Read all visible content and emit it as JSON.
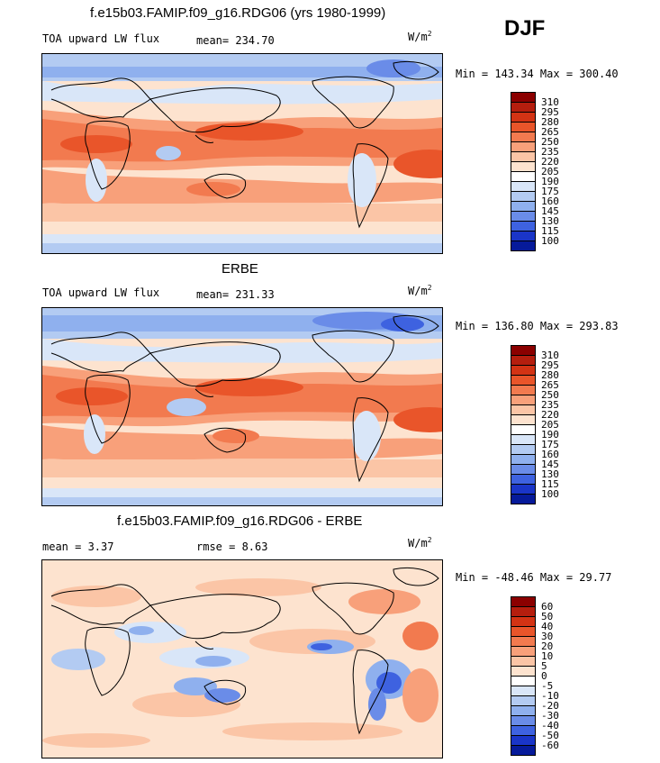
{
  "season": "DJF",
  "panels": [
    {
      "title": "f.e15b03.FAMIP.f09_g16.RDG06 (yrs 1980-1999)",
      "left_label": "TOA upward LW flux",
      "stat1": "mean= 234.70",
      "stat2": "",
      "units": "W/m",
      "units_sup": "2",
      "minmax": "Min = 143.34 Max = 300.40",
      "colorbar": {
        "labels": [
          "310",
          "295",
          "280",
          "265",
          "250",
          "235",
          "220",
          "205",
          "190",
          "175",
          "160",
          "145",
          "130",
          "115",
          "100"
        ],
        "colors": [
          "#8b0000",
          "#b51e0e",
          "#d33314",
          "#e9552a",
          "#f27a4f",
          "#f8a07a",
          "#fbc5a6",
          "#fde3cf",
          "#ffffff",
          "#d9e6f8",
          "#b3cbf2",
          "#8fb0ee",
          "#6a8ce8",
          "#3e62e0",
          "#1a35c8",
          "#061a9a"
        ]
      }
    },
    {
      "title": "ERBE",
      "left_label": "TOA upward LW flux",
      "stat1": "mean= 231.33",
      "stat2": "",
      "units": "W/m",
      "units_sup": "2",
      "minmax": "Min = 136.80 Max = 293.83",
      "colorbar": {
        "labels": [
          "310",
          "295",
          "280",
          "265",
          "250",
          "235",
          "220",
          "205",
          "190",
          "175",
          "160",
          "145",
          "130",
          "115",
          "100"
        ],
        "colors": [
          "#8b0000",
          "#b51e0e",
          "#d33314",
          "#e9552a",
          "#f27a4f",
          "#f8a07a",
          "#fbc5a6",
          "#fde3cf",
          "#ffffff",
          "#d9e6f8",
          "#b3cbf2",
          "#8fb0ee",
          "#6a8ce8",
          "#3e62e0",
          "#1a35c8",
          "#061a9a"
        ]
      }
    },
    {
      "title": "f.e15b03.FAMIP.f09_g16.RDG06 - ERBE",
      "left_label": "mean =   3.37",
      "stat1": "rmse =   8.63",
      "stat2": "",
      "units": "W/m",
      "units_sup": "2",
      "minmax": "Min = -48.46 Max =  29.77",
      "colorbar": {
        "labels": [
          "60",
          "50",
          "40",
          "30",
          "20",
          "10",
          "5",
          "0",
          "-5",
          "-10",
          "-20",
          "-30",
          "-40",
          "-50",
          "-60"
        ],
        "colors": [
          "#8b0000",
          "#b51e0e",
          "#d33314",
          "#e9552a",
          "#f27a4f",
          "#f8a07a",
          "#fbc5a6",
          "#fde3cf",
          "#ffffff",
          "#d9e6f8",
          "#b3cbf2",
          "#8fb0ee",
          "#6a8ce8",
          "#3e62e0",
          "#1a35c8",
          "#061a9a"
        ]
      }
    }
  ]
}
